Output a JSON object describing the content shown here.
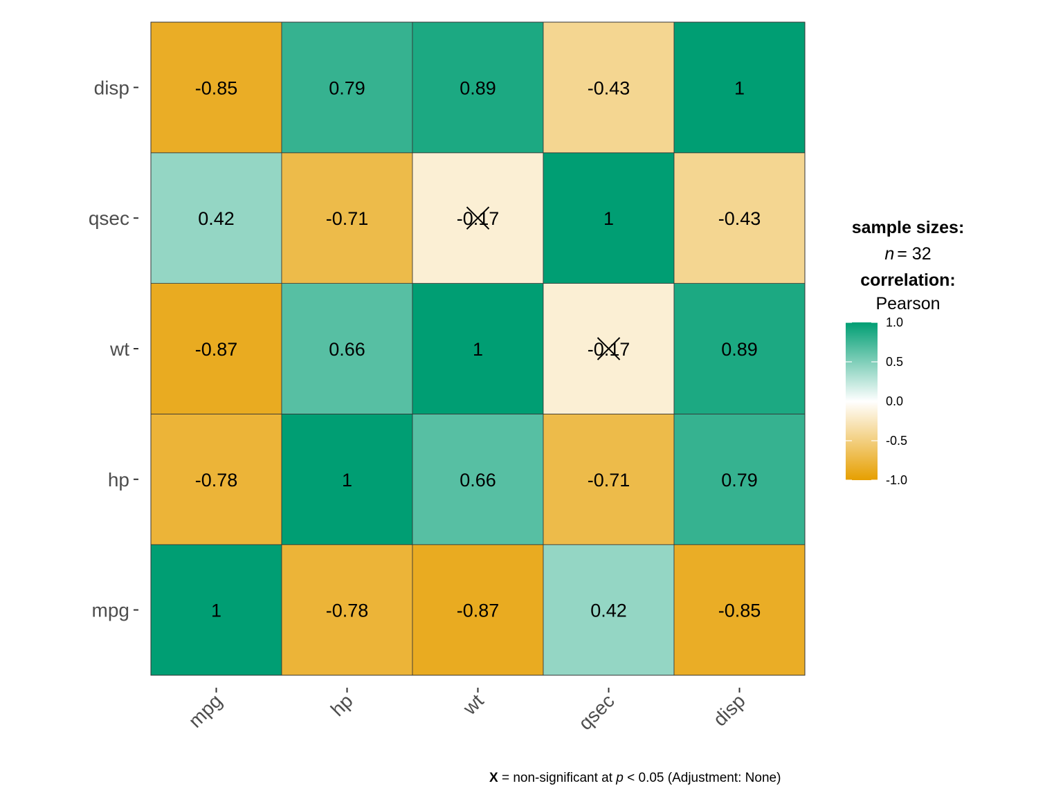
{
  "chart_data": {
    "type": "heatmap",
    "x_categories": [
      "mpg",
      "hp",
      "wt",
      "qsec",
      "disp"
    ],
    "y_categories": [
      "mpg",
      "hp",
      "wt",
      "qsec",
      "disp"
    ],
    "values": [
      [
        1,
        -0.78,
        -0.87,
        0.42,
        -0.85
      ],
      [
        -0.78,
        1,
        0.66,
        -0.71,
        0.79
      ],
      [
        -0.87,
        0.66,
        1,
        -0.17,
        0.89
      ],
      [
        0.42,
        -0.71,
        -0.17,
        1,
        -0.43
      ],
      [
        -0.85,
        0.79,
        0.89,
        -0.43,
        1
      ]
    ],
    "labels": [
      [
        "1",
        "-0.78",
        "-0.87",
        "0.42",
        "-0.85"
      ],
      [
        "-0.78",
        "1",
        "0.66",
        "-0.71",
        "0.79"
      ],
      [
        "-0.87",
        "0.66",
        "1",
        "-0.17",
        "0.89"
      ],
      [
        "0.42",
        "-0.71",
        "-0.17",
        "1",
        "-0.43"
      ],
      [
        "-0.85",
        "0.79",
        "0.89",
        "-0.43",
        "1"
      ]
    ],
    "non_significant": [
      [
        false,
        false,
        false,
        false,
        false
      ],
      [
        false,
        false,
        false,
        false,
        false
      ],
      [
        false,
        false,
        false,
        true,
        false
      ],
      [
        false,
        false,
        true,
        false,
        false
      ],
      [
        false,
        false,
        false,
        false,
        false
      ]
    ],
    "color_scale": {
      "low": "#E69F00",
      "mid": "#ffffff",
      "high": "#009E73",
      "range": [
        -1,
        1
      ],
      "ticks": [
        1.0,
        0.5,
        0.0,
        -0.5,
        -1.0
      ],
      "tick_labels": [
        "1.0",
        "0.5",
        "0.0",
        "-0.5",
        "-1.0"
      ]
    }
  },
  "legend": {
    "sample_title": "sample sizes:",
    "sample_n_var": "n",
    "sample_n_value": "= 32",
    "corr_title": "correlation:",
    "corr_method": "Pearson"
  },
  "caption": {
    "mark": "X",
    "text_a": " = non-significant at ",
    "p_var": "p",
    "text_b": " < 0.05 (Adjustment: None)"
  }
}
